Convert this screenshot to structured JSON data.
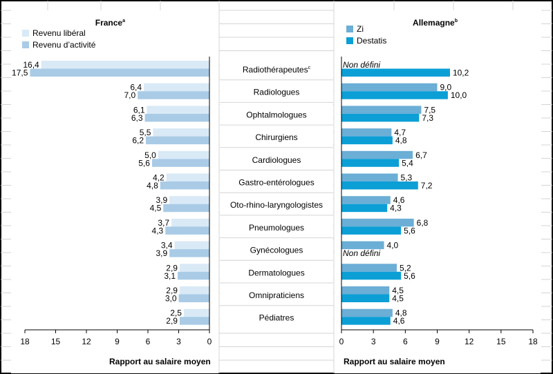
{
  "chart_data": {
    "type": "bar",
    "orientation": "horizontal",
    "categories": [
      "Radiothérapeutes",
      "Radiologues",
      "Ophtalmologues",
      "Chirurgiens",
      "Cardiologues",
      "Gastro-entérologues",
      "Oto-rhino-laryngologistes",
      "Pneumologues",
      "Gynécologues",
      "Dermatologues",
      "Omnipraticiens",
      "Pédiatres"
    ],
    "category_superscripts": [
      "c",
      "",
      "",
      "",
      "",
      "",
      "",
      "",
      "",
      "",
      "",
      ""
    ],
    "left_panel": {
      "title": "France",
      "title_superscript": "a",
      "xlabel": "Rapport au salaire moyen",
      "xlim": [
        0,
        18
      ],
      "ticks": [
        18,
        15,
        12,
        9,
        6,
        3,
        0
      ],
      "reversed": true,
      "legend_position": "top-left",
      "series": [
        {
          "name": "Revenu libéral",
          "color": "#d9e9f6",
          "values": [
            16.4,
            6.4,
            6.1,
            5.5,
            5.0,
            4.2,
            3.9,
            3.7,
            3.4,
            2.9,
            2.9,
            2.5
          ]
        },
        {
          "name": "Revenu d’activité",
          "color": "#a9cbe6",
          "values": [
            17.5,
            7.0,
            6.3,
            6.2,
            5.6,
            4.8,
            4.5,
            4.3,
            3.9,
            3.1,
            3.0,
            2.9
          ]
        }
      ]
    },
    "right_panel": {
      "title": "Allemagne",
      "title_superscript": "b",
      "xlabel": "Rapport au salaire moyen",
      "xlim": [
        0,
        18
      ],
      "ticks": [
        0,
        3,
        6,
        9,
        12,
        15,
        18
      ],
      "reversed": false,
      "legend_position": "top-left",
      "undefined_label": "Non défini",
      "series": [
        {
          "name": "Zi",
          "color": "#6baed6",
          "values": [
            null,
            9.0,
            7.5,
            4.7,
            6.7,
            5.3,
            4.6,
            6.8,
            4.0,
            5.2,
            4.5,
            4.8
          ]
        },
        {
          "name": "Destatis",
          "color": "#0b9fd6",
          "values": [
            10.2,
            10.0,
            7.3,
            4.8,
            5.4,
            7.2,
            4.3,
            5.6,
            null,
            5.6,
            4.5,
            4.6
          ]
        }
      ]
    },
    "decimal_separator": ",",
    "grid": false
  }
}
